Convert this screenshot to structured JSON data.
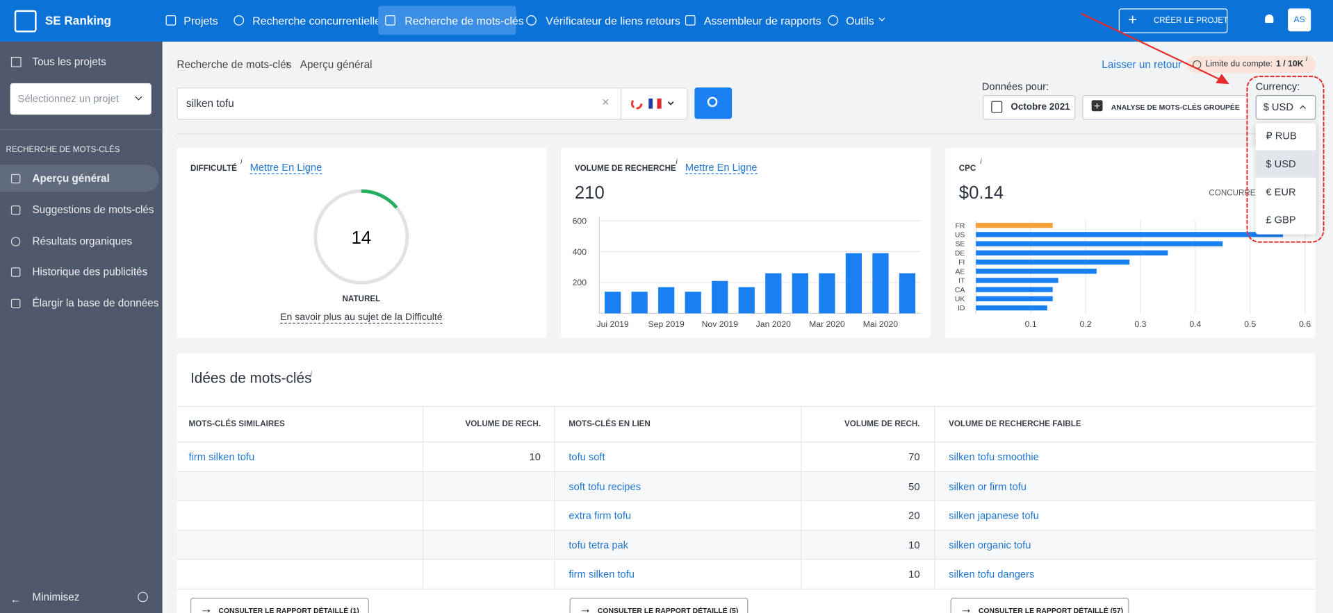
{
  "nav": {
    "logo": "SE Ranking",
    "items": [
      "Projets",
      "Recherche concurrentielle",
      "Recherche de mots-clés",
      "Vérificateur de liens retours",
      "Assembleur de rapports",
      "Outils"
    ],
    "active": 2,
    "create_button": "CRÉER LE PROJET",
    "avatar": "AS"
  },
  "sidebar": {
    "all_projects": "Tous les projets",
    "project_select": "Sélectionnez un projet",
    "section": "RECHERCHE DE MOTS-CLÉS",
    "items": [
      "Aperçu général",
      "Suggestions de mots-clés",
      "Résultats organiques",
      "Historique des publicités",
      "Élargir la base de données"
    ],
    "active": 0,
    "minimize": "Minimisez"
  },
  "breadcrumb": [
    "Recherche de mots-clés",
    "Aperçu général"
  ],
  "feedback": "Laisser un retour",
  "limit_label": "Limite du compte:",
  "limit_value": "1 / 10K",
  "limit_info": "i",
  "search": {
    "query": "silken tofu"
  },
  "data_for": {
    "label": "Données pour:",
    "date": "Octobre 2021",
    "bulk": "ANALYSE DE MOTS-CLÉS GROUPÉE"
  },
  "currency": {
    "label": "Currency:",
    "options": [
      "₽ RUB",
      "$ USD",
      "€ EUR",
      "£ GBP"
    ],
    "selected": 1
  },
  "difficulty": {
    "title": "DIFFICULTÉ",
    "info": "i",
    "trend": "Mettre En Ligne",
    "value": 14,
    "range": [
      0,
      100
    ],
    "color": "#27ae60",
    "level": "NATUREL",
    "link": "En savoir plus au sujet de la Difficulté"
  },
  "volume": {
    "title": "VOLUME DE RECHERCHE",
    "info": "i",
    "trend": "Mettre En Ligne",
    "value": 210,
    "chart": {
      "type": "bar",
      "categories": [
        "Jui 2019",
        null,
        "Sep 2019",
        null,
        "Nov 2019",
        null,
        "Jan 2020",
        null,
        "Mar 2020",
        null,
        "Mai 2020",
        null
      ],
      "values": [
        140,
        140,
        170,
        140,
        210,
        170,
        260,
        260,
        260,
        390,
        390,
        260
      ],
      "color": "#1a7ff0",
      "ylim": [
        0,
        600
      ],
      "yticks": [
        200,
        400,
        600
      ],
      "grid": true
    }
  },
  "cpc": {
    "title": "CPC",
    "info": "i",
    "value": "$0.14",
    "competition": "CONCURRENCE",
    "chart": {
      "type": "hbar",
      "categories": [
        "FR",
        "US",
        "SE",
        "DE",
        "FI",
        "AE",
        "IT",
        "CA",
        "UK",
        "ID"
      ],
      "values": [
        0.14,
        0.56,
        0.45,
        0.35,
        0.28,
        0.22,
        0.15,
        0.14,
        0.14,
        0.13
      ],
      "colors": [
        "#f5a03a",
        "#1a7ff0",
        "#1a7ff0",
        "#1a7ff0",
        "#1a7ff0",
        "#1a7ff0",
        "#1a7ff0",
        "#1a7ff0",
        "#1a7ff0",
        "#1a7ff0"
      ],
      "xlim": [
        0,
        0.6
      ],
      "xticks": [
        0.1,
        0.2,
        0.3,
        0.4,
        0.5,
        0.6
      ],
      "grid": true
    }
  },
  "ideas": {
    "title": "Idées de mots-clés",
    "info": "i",
    "columns": [
      {
        "headers": [
          "MOTS-CLÉS SIMILAIRES",
          "VOLUME DE RECH."
        ],
        "rows": [
          [
            "firm silken tofu",
            10
          ]
        ],
        "button": "CONSULTER LE RAPPORT DÉTAILLÉ (1)"
      },
      {
        "headers": [
          "MOTS-CLÉS EN LIEN",
          "VOLUME DE RECH."
        ],
        "rows": [
          [
            "tofu soft",
            70
          ],
          [
            "soft tofu recipes",
            50
          ],
          [
            "extra firm tofu",
            20
          ],
          [
            "tofu tetra pak",
            10
          ],
          [
            "firm silken tofu",
            10
          ]
        ],
        "button": "CONSULTER LE RAPPORT DÉTAILLÉ (5)"
      },
      {
        "headers": [
          "VOLUME DE RECHERCHE FAIBLE"
        ],
        "rows": [
          [
            "silken tofu smoothie"
          ],
          [
            "silken or firm tofu"
          ],
          [
            "silken japanese tofu"
          ],
          [
            "silken organic tofu"
          ],
          [
            "silken tofu dangers"
          ]
        ],
        "button": "CONSULTER LE RAPPORT DÉTAILLÉ (57)"
      }
    ]
  }
}
